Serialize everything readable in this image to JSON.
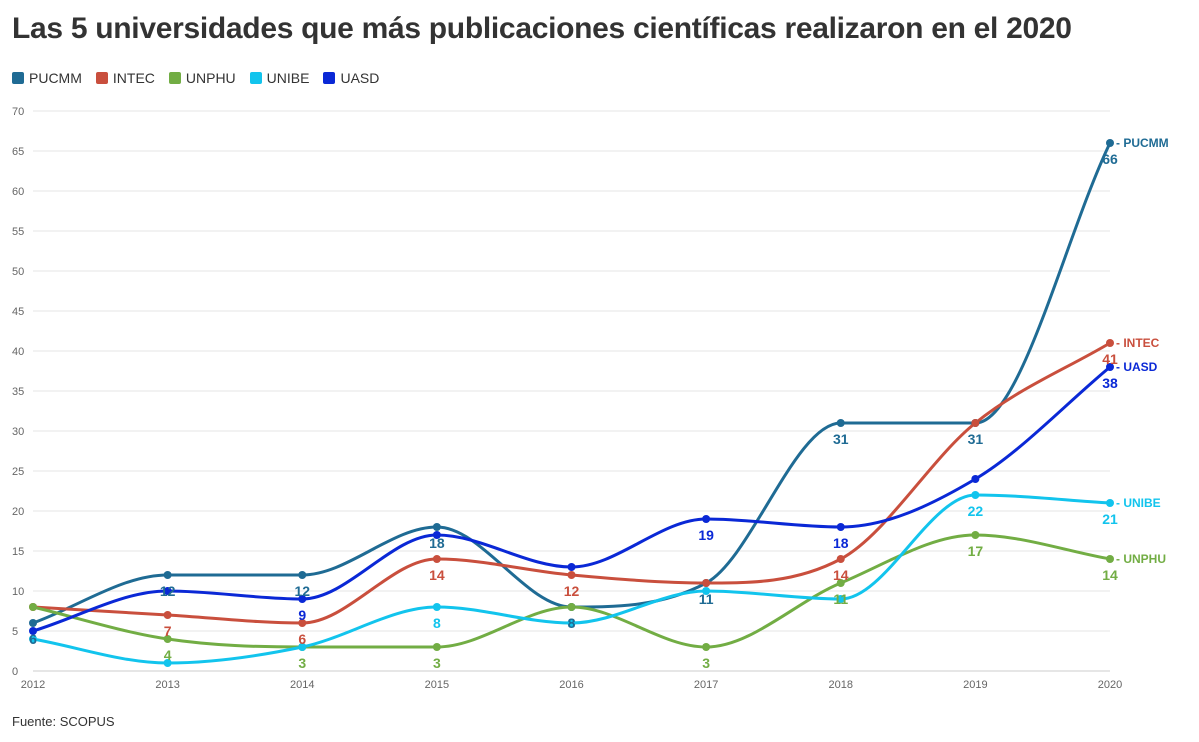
{
  "title": "Las 5 universidades que más publicaciones científicas realizaron en el 2020",
  "source": "Fuente: SCOPUS",
  "chart_data": {
    "type": "line",
    "x": [
      "2012",
      "2013",
      "2014",
      "2015",
      "2016",
      "2017",
      "2018",
      "2019",
      "2020"
    ],
    "ylim": [
      0,
      70
    ],
    "yticks": [
      0,
      5,
      10,
      15,
      20,
      25,
      30,
      35,
      40,
      45,
      50,
      55,
      60,
      65,
      70
    ],
    "grid": true,
    "legend_position": "top-left",
    "series": [
      {
        "name": "PUCMM",
        "color": "#1f6b94",
        "values": [
          6,
          12,
          12,
          18,
          8,
          11,
          31,
          31,
          66
        ]
      },
      {
        "name": "INTEC",
        "color": "#c94f3d",
        "values": [
          8,
          7,
          6,
          14,
          12,
          11,
          14,
          31,
          41
        ]
      },
      {
        "name": "UNPHU",
        "color": "#72ad44",
        "values": [
          8,
          4,
          3,
          3,
          8,
          3,
          11,
          17,
          14
        ]
      },
      {
        "name": "UNIBE",
        "color": "#12c4ed",
        "values": [
          4,
          1,
          3,
          8,
          6,
          10,
          9,
          22,
          21
        ]
      },
      {
        "name": "UASD",
        "color": "#0a28d6",
        "values": [
          5,
          10,
          9,
          17,
          13,
          19,
          18,
          24,
          38
        ]
      }
    ],
    "data_labels": [
      {
        "series": "PUCMM",
        "index": 0,
        "text": "6"
      },
      {
        "series": "PUCMM",
        "index": 1,
        "text": "12"
      },
      {
        "series": "PUCMM",
        "index": 2,
        "text": "12"
      },
      {
        "series": "PUCMM",
        "index": 3,
        "text": "18"
      },
      {
        "series": "PUCMM",
        "index": 4,
        "text": "8"
      },
      {
        "series": "PUCMM",
        "index": 5,
        "text": "11"
      },
      {
        "series": "PUCMM",
        "index": 6,
        "text": "31"
      },
      {
        "series": "PUCMM",
        "index": 7,
        "text": "31"
      },
      {
        "series": "PUCMM",
        "index": 8,
        "text": "66"
      },
      {
        "series": "INTEC",
        "index": 1,
        "text": "7"
      },
      {
        "series": "INTEC",
        "index": 2,
        "text": "6"
      },
      {
        "series": "INTEC",
        "index": 3,
        "text": "14"
      },
      {
        "series": "INTEC",
        "index": 4,
        "text": "12"
      },
      {
        "series": "INTEC",
        "index": 6,
        "text": "14"
      },
      {
        "series": "INTEC",
        "index": 8,
        "text": "41"
      },
      {
        "series": "UNPHU",
        "index": 1,
        "text": "4"
      },
      {
        "series": "UNPHU",
        "index": 2,
        "text": "3"
      },
      {
        "series": "UNPHU",
        "index": 3,
        "text": "3"
      },
      {
        "series": "UNPHU",
        "index": 5,
        "text": "3"
      },
      {
        "series": "UNPHU",
        "index": 6,
        "text": "11"
      },
      {
        "series": "UNPHU",
        "index": 7,
        "text": "17"
      },
      {
        "series": "UNPHU",
        "index": 8,
        "text": "14"
      },
      {
        "series": "UNIBE",
        "index": 3,
        "text": "8"
      },
      {
        "series": "UNIBE",
        "index": 7,
        "text": "22"
      },
      {
        "series": "UNIBE",
        "index": 8,
        "text": "21"
      },
      {
        "series": "UASD",
        "index": 2,
        "text": "9"
      },
      {
        "series": "UASD",
        "index": 5,
        "text": "19"
      },
      {
        "series": "UASD",
        "index": 6,
        "text": "18"
      },
      {
        "series": "UASD",
        "index": 8,
        "text": "38"
      }
    ]
  }
}
